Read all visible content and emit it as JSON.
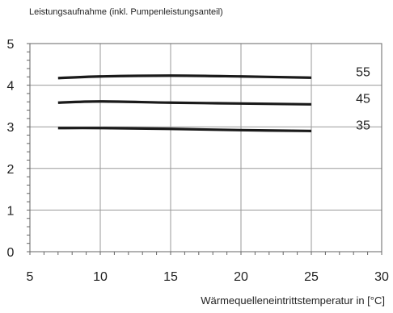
{
  "chart_data": {
    "type": "line",
    "title": "Leistungsaufnahme (inkl. Pumpenleistungsanteil)",
    "xlabel": "Wärmequelleneintrittstemperatur in [°C]",
    "ylabel": "",
    "xlim": [
      5,
      30
    ],
    "ylim": [
      0,
      5
    ],
    "x_ticks": [
      "5",
      "10",
      "15",
      "20",
      "25",
      "30"
    ],
    "y_ticks": [
      "0",
      "1",
      "2",
      "3",
      "4",
      "5"
    ],
    "grid": true,
    "series": [
      {
        "name": "55",
        "x": [
          7,
          10,
          15,
          20,
          25
        ],
        "y": [
          4.17,
          4.21,
          4.23,
          4.21,
          4.18
        ]
      },
      {
        "name": "45",
        "x": [
          7,
          10,
          15,
          20,
          25
        ],
        "y": [
          3.58,
          3.61,
          3.58,
          3.56,
          3.54
        ]
      },
      {
        "name": "35",
        "x": [
          7,
          10,
          15,
          20,
          25
        ],
        "y": [
          2.97,
          2.97,
          2.95,
          2.92,
          2.9
        ]
      }
    ],
    "colors": {
      "line": "#1a1a1a",
      "grid": "#9a9a9a",
      "frame": "#666666"
    }
  }
}
